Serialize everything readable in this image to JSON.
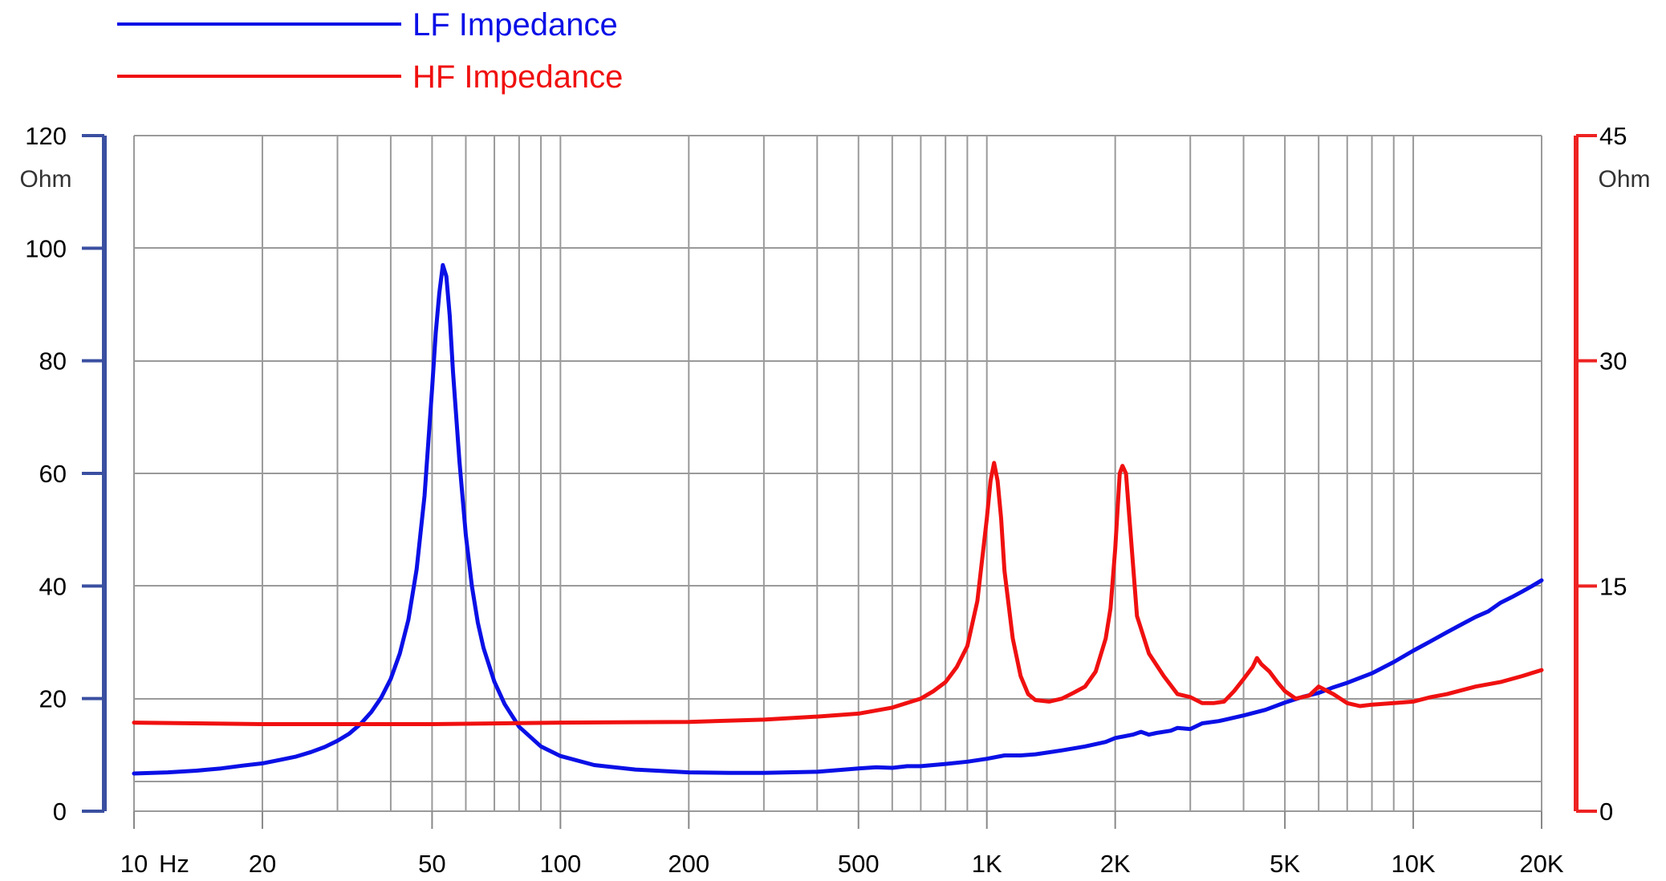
{
  "chart_data": {
    "type": "line",
    "x_scale": "log",
    "xlim": [
      10,
      20000
    ],
    "x_tick_labels": [
      {
        "value": 10,
        "label": "10"
      },
      {
        "value": 20,
        "label": "20"
      },
      {
        "value": 50,
        "label": "50"
      },
      {
        "value": 100,
        "label": "100"
      },
      {
        "value": 200,
        "label": "200"
      },
      {
        "value": 500,
        "label": "500"
      },
      {
        "value": 1000,
        "label": "1K"
      },
      {
        "value": 2000,
        "label": "2K"
      },
      {
        "value": 5000,
        "label": "5K"
      },
      {
        "value": 10000,
        "label": "10K"
      },
      {
        "value": 20000,
        "label": "20K"
      }
    ],
    "x_unit": "Hz",
    "y_left": {
      "range": [
        0,
        120
      ],
      "ticks": [
        0,
        20,
        40,
        60,
        80,
        100,
        120
      ],
      "unit": "Ohm",
      "color": "#3a4fa0"
    },
    "y_right": {
      "range": [
        0,
        45
      ],
      "ticks": [
        0,
        15,
        30,
        45
      ],
      "unit": "Ohm",
      "color": "#ee2222"
    },
    "grid": true,
    "legend_position": "top-left",
    "series": [
      {
        "name": "LF Impedance",
        "axis": "left",
        "color": "#0a10e6",
        "points": [
          [
            10,
            6.7
          ],
          [
            12,
            6.9
          ],
          [
            14,
            7.2
          ],
          [
            16,
            7.6
          ],
          [
            18,
            8.1
          ],
          [
            20,
            8.5
          ],
          [
            22,
            9.1
          ],
          [
            24,
            9.7
          ],
          [
            26,
            10.5
          ],
          [
            28,
            11.4
          ],
          [
            30,
            12.5
          ],
          [
            32,
            13.8
          ],
          [
            34,
            15.5
          ],
          [
            36,
            17.6
          ],
          [
            38,
            20.2
          ],
          [
            40,
            23.5
          ],
          [
            42,
            28
          ],
          [
            44,
            34
          ],
          [
            46,
            43
          ],
          [
            48,
            56
          ],
          [
            50,
            75
          ],
          [
            51,
            85
          ],
          [
            52,
            92
          ],
          [
            53,
            97
          ],
          [
            54,
            95
          ],
          [
            55,
            88
          ],
          [
            56,
            78
          ],
          [
            58,
            62
          ],
          [
            60,
            49
          ],
          [
            62,
            40
          ],
          [
            64,
            33.5
          ],
          [
            66,
            29
          ],
          [
            70,
            23
          ],
          [
            74,
            19
          ],
          [
            80,
            15
          ],
          [
            90,
            11.5
          ],
          [
            100,
            9.8
          ],
          [
            120,
            8.2
          ],
          [
            150,
            7.4
          ],
          [
            200,
            6.9
          ],
          [
            250,
            6.8
          ],
          [
            300,
            6.8
          ],
          [
            400,
            7.0
          ],
          [
            500,
            7.6
          ],
          [
            550,
            7.8
          ],
          [
            600,
            7.7
          ],
          [
            650,
            8.0
          ],
          [
            700,
            8.0
          ],
          [
            800,
            8.4
          ],
          [
            900,
            8.8
          ],
          [
            1000,
            9.3
          ],
          [
            1100,
            9.9
          ],
          [
            1200,
            9.9
          ],
          [
            1300,
            10.1
          ],
          [
            1500,
            10.8
          ],
          [
            1700,
            11.5
          ],
          [
            1900,
            12.3
          ],
          [
            2000,
            13.0
          ],
          [
            2200,
            13.6
          ],
          [
            2300,
            14.1
          ],
          [
            2400,
            13.6
          ],
          [
            2500,
            13.9
          ],
          [
            2700,
            14.3
          ],
          [
            2800,
            14.8
          ],
          [
            3000,
            14.6
          ],
          [
            3200,
            15.6
          ],
          [
            3500,
            16.0
          ],
          [
            4000,
            17.0
          ],
          [
            4500,
            18.0
          ],
          [
            5000,
            19.3
          ],
          [
            5500,
            20.3
          ],
          [
            6000,
            21.0
          ],
          [
            6500,
            22.0
          ],
          [
            7000,
            22.8
          ],
          [
            8000,
            24.5
          ],
          [
            9000,
            26.5
          ],
          [
            10000,
            28.5
          ],
          [
            11000,
            30.2
          ],
          [
            12000,
            31.8
          ],
          [
            13000,
            33.2
          ],
          [
            14000,
            34.5
          ],
          [
            15000,
            35.5
          ],
          [
            16000,
            37.0
          ],
          [
            17000,
            38.0
          ],
          [
            18000,
            39.0
          ],
          [
            19000,
            40.0
          ],
          [
            20000,
            41.0
          ]
        ]
      },
      {
        "name": "HF Impedance",
        "axis": "right",
        "color": "#f01010",
        "points": [
          [
            10,
            5.9
          ],
          [
            20,
            5.8
          ],
          [
            50,
            5.8
          ],
          [
            100,
            5.9
          ],
          [
            200,
            5.95
          ],
          [
            300,
            6.1
          ],
          [
            400,
            6.3
          ],
          [
            500,
            6.5
          ],
          [
            600,
            6.9
          ],
          [
            700,
            7.5
          ],
          [
            750,
            8.0
          ],
          [
            800,
            8.6
          ],
          [
            850,
            9.6
          ],
          [
            900,
            11.0
          ],
          [
            950,
            14.0
          ],
          [
            1000,
            19.5
          ],
          [
            1020,
            22.0
          ],
          [
            1040,
            23.2
          ],
          [
            1060,
            22.0
          ],
          [
            1080,
            19.5
          ],
          [
            1100,
            16.0
          ],
          [
            1150,
            11.5
          ],
          [
            1200,
            9.0
          ],
          [
            1250,
            7.8
          ],
          [
            1300,
            7.4
          ],
          [
            1400,
            7.3
          ],
          [
            1500,
            7.5
          ],
          [
            1600,
            7.9
          ],
          [
            1700,
            8.3
          ],
          [
            1800,
            9.3
          ],
          [
            1900,
            11.5
          ],
          [
            1950,
            13.5
          ],
          [
            2000,
            17.5
          ],
          [
            2050,
            22.5
          ],
          [
            2080,
            23.0
          ],
          [
            2120,
            22.5
          ],
          [
            2160,
            19.5
          ],
          [
            2250,
            13.0
          ],
          [
            2400,
            10.5
          ],
          [
            2600,
            9.0
          ],
          [
            2800,
            7.8
          ],
          [
            3000,
            7.6
          ],
          [
            3200,
            7.2
          ],
          [
            3400,
            7.2
          ],
          [
            3600,
            7.3
          ],
          [
            3800,
            8.0
          ],
          [
            4000,
            8.8
          ],
          [
            4200,
            9.6
          ],
          [
            4300,
            10.2
          ],
          [
            4400,
            9.8
          ],
          [
            4600,
            9.3
          ],
          [
            4800,
            8.6
          ],
          [
            5000,
            8.0
          ],
          [
            5300,
            7.5
          ],
          [
            5700,
            7.7
          ],
          [
            6000,
            8.3
          ],
          [
            6500,
            7.8
          ],
          [
            7000,
            7.2
          ],
          [
            7500,
            7.0
          ],
          [
            8000,
            7.1
          ],
          [
            9000,
            7.2
          ],
          [
            10000,
            7.3
          ],
          [
            11000,
            7.6
          ],
          [
            12000,
            7.8
          ],
          [
            14000,
            8.3
          ],
          [
            16000,
            8.6
          ],
          [
            18000,
            9.0
          ],
          [
            20000,
            9.4
          ]
        ]
      }
    ]
  }
}
